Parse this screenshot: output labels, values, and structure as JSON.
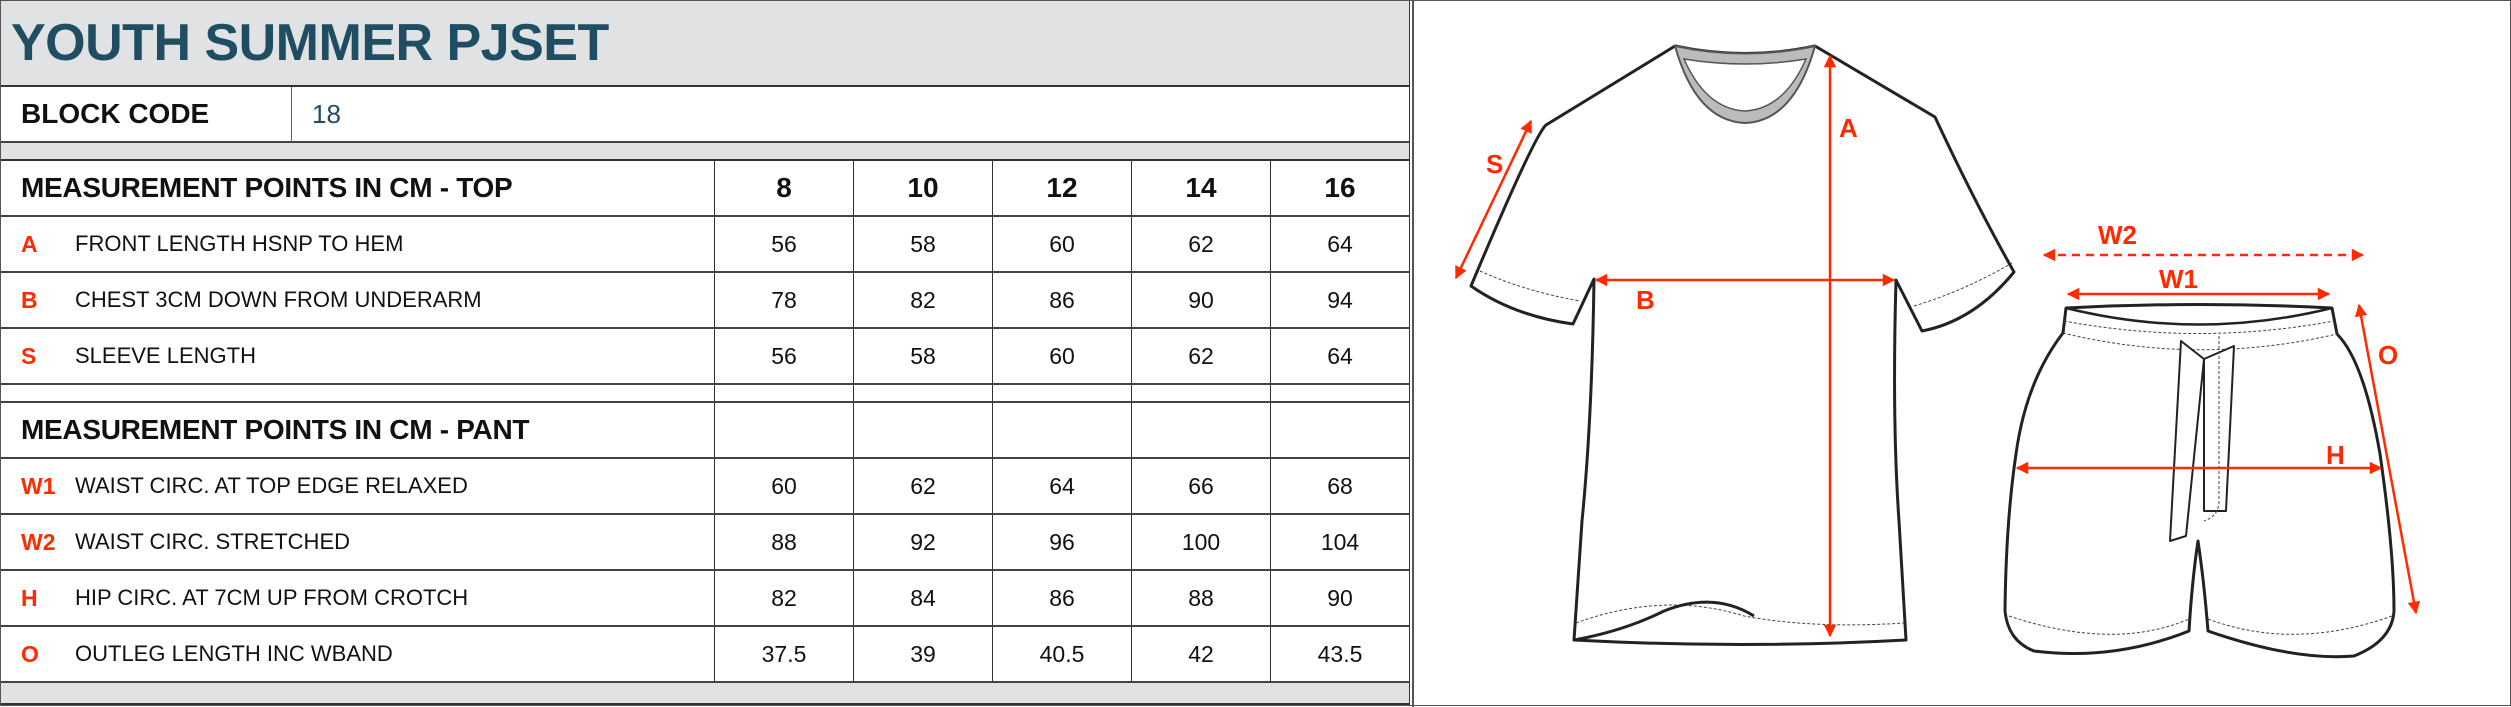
{
  "title": "YOUTH SUMMER PJSET",
  "block_code": {
    "label": "BLOCK CODE",
    "value": "18"
  },
  "sizes": [
    "8",
    "10",
    "12",
    "14",
    "16"
  ],
  "top": {
    "heading": "MEASUREMENT POINTS IN CM - TOP",
    "rows": [
      {
        "code": "A",
        "label": "FRONT LENGTH HSNP TO HEM",
        "values": [
          "56",
          "58",
          "60",
          "62",
          "64"
        ]
      },
      {
        "code": "B",
        "label": "CHEST 3CM DOWN FROM UNDERARM",
        "values": [
          "78",
          "82",
          "86",
          "90",
          "94"
        ]
      },
      {
        "code": "S",
        "label": "SLEEVE LENGTH",
        "values": [
          "56",
          "58",
          "60",
          "62",
          "64"
        ]
      }
    ]
  },
  "pant": {
    "heading": "MEASUREMENT POINTS IN CM - PANT",
    "rows": [
      {
        "code": "W1",
        "label": "WAIST CIRC. AT TOP EDGE RELAXED",
        "values": [
          "60",
          "62",
          "64",
          "66",
          "68"
        ]
      },
      {
        "code": "W2",
        "label": "WAIST CIRC. STRETCHED",
        "values": [
          "88",
          "92",
          "96",
          "100",
          "104"
        ]
      },
      {
        "code": "H",
        "label": "HIP CIRC. AT 7CM UP FROM CROTCH",
        "values": [
          "82",
          "84",
          "86",
          "88",
          "90"
        ]
      },
      {
        "code": "O",
        "label": "OUTLEG LENGTH INC WBAND",
        "values": [
          "37.5",
          "39",
          "40.5",
          "42",
          "43.5"
        ]
      }
    ]
  },
  "diagram": {
    "A": "A",
    "B": "B",
    "S": "S",
    "W1": "W1",
    "W2": "W2",
    "H": "H",
    "O": "O"
  },
  "colors": {
    "title": "#1f4e63",
    "measure_code": "#ff2a00",
    "band": "#e1e2e4"
  }
}
